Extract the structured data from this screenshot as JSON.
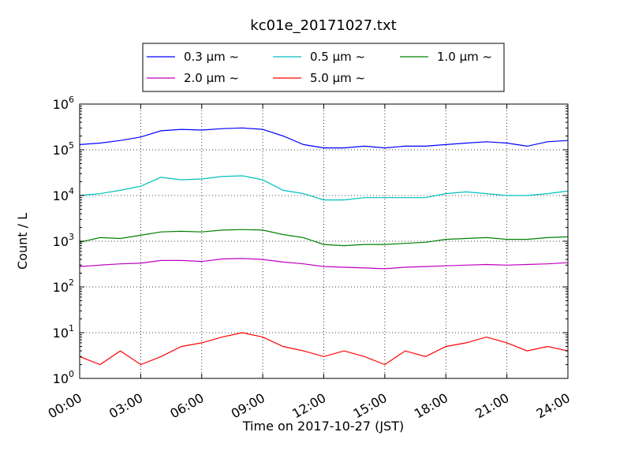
{
  "chart_data": {
    "type": "line",
    "title": "kc01e_20171027.txt",
    "xlabel": "Time on 2017-10-27 (JST)",
    "ylabel": "Count / L",
    "yscale": "log",
    "ylim": [
      1,
      1000000
    ],
    "xlim": [
      "00:00",
      "24:00"
    ],
    "x_ticks": [
      "00:00",
      "03:00",
      "06:00",
      "09:00",
      "12:00",
      "15:00",
      "18:00",
      "21:00",
      "24:00"
    ],
    "y_ticks": [
      {
        "value": 1,
        "base": "10",
        "exp": "0"
      },
      {
        "value": 10,
        "base": "10",
        "exp": "1"
      },
      {
        "value": 100,
        "base": "10",
        "exp": "2"
      },
      {
        "value": 1000,
        "base": "10",
        "exp": "3"
      },
      {
        "value": 10000,
        "base": "10",
        "exp": "4"
      },
      {
        "value": 100000,
        "base": "10",
        "exp": "5"
      },
      {
        "value": 1000000,
        "base": "10",
        "exp": "6"
      }
    ],
    "grid": true,
    "legend_position": "top",
    "x_hours": [
      0,
      1,
      2,
      3,
      4,
      5,
      6,
      7,
      8,
      9,
      10,
      11,
      12,
      13,
      14,
      15,
      16,
      17,
      18,
      19,
      20,
      21,
      22,
      23,
      24
    ],
    "series": [
      {
        "name": "0.3 μm ~",
        "color": "#0000ff",
        "values": [
          130000,
          140000,
          160000,
          190000,
          260000,
          280000,
          270000,
          290000,
          300000,
          280000,
          200000,
          130000,
          110000,
          110000,
          120000,
          110000,
          120000,
          120000,
          130000,
          140000,
          150000,
          140000,
          120000,
          150000,
          160000
        ]
      },
      {
        "name": "0.5 μm ~",
        "color": "#00bfbf",
        "values": [
          10000,
          11000,
          13000,
          16000,
          25000,
          22000,
          23000,
          26000,
          27000,
          22000,
          13000,
          11000,
          8000,
          8000,
          9000,
          9000,
          9000,
          9000,
          11000,
          12000,
          11000,
          10000,
          10000,
          11000,
          12500
        ]
      },
      {
        "name": "1.0 μm ~",
        "color": "#008000",
        "values": [
          950,
          1200,
          1150,
          1350,
          1600,
          1650,
          1600,
          1750,
          1800,
          1750,
          1400,
          1200,
          850,
          800,
          850,
          850,
          900,
          950,
          1100,
          1150,
          1200,
          1100,
          1100,
          1200,
          1250
        ]
      },
      {
        "name": "2.0 μm ~",
        "color": "#bf00bf",
        "values": [
          280,
          300,
          320,
          330,
          380,
          380,
          360,
          410,
          420,
          400,
          350,
          320,
          280,
          270,
          260,
          250,
          270,
          280,
          290,
          300,
          310,
          300,
          310,
          320,
          340
        ]
      },
      {
        "name": "5.0 μm ~",
        "color": "#ff0000",
        "values": [
          3,
          2,
          4,
          2,
          3,
          5,
          6,
          8,
          10,
          8,
          5,
          4,
          3,
          4,
          3,
          2,
          4,
          3,
          5,
          6,
          8,
          6,
          4,
          5,
          4
        ]
      }
    ]
  }
}
